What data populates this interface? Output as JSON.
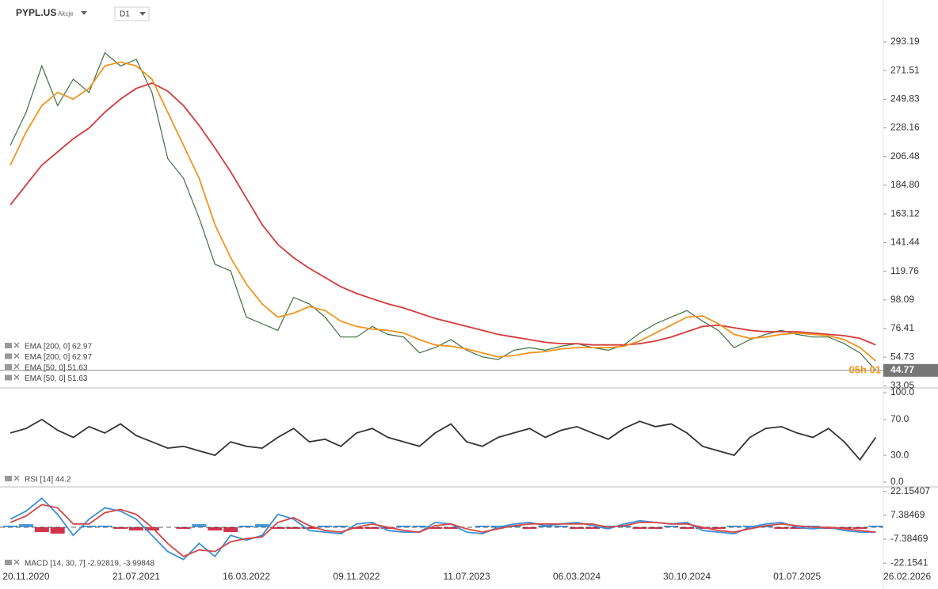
{
  "header": {
    "symbol": "PYPL.US",
    "asset_class": "Akcje",
    "timeframe": "D1"
  },
  "chart_data": [
    {
      "type": "line",
      "ylim": [
        31.5,
        318.9
      ],
      "yticks": [
        293.19,
        271.51,
        249.83,
        228.16,
        206.48,
        {
          "value": 184.8,
          "label": "184.80"
        },
        163.12,
        141.44,
        119.76,
        98.09,
        76.41,
        54.73,
        33.05
      ],
      "series": [
        {
          "color": "#3f6f3f",
          "values": [
            215,
            240,
            275,
            245,
            265,
            255,
            285,
            275,
            280,
            255,
            205,
            190,
            160,
            125,
            120,
            85,
            80,
            75,
            100,
            95,
            85,
            70,
            70,
            78,
            72,
            70,
            58,
            62,
            68,
            60,
            55,
            53,
            60,
            62,
            60,
            63,
            65,
            62,
            60,
            64,
            73,
            80,
            85,
            90,
            82,
            75,
            62,
            68,
            72,
            75,
            72,
            70,
            70,
            65,
            58,
            45,
            null,
            null
          ]
        },
        {
          "color": "#d63a3a",
          "values": [
            170,
            185,
            200,
            210,
            220,
            228,
            240,
            250,
            258,
            262,
            256,
            245,
            230,
            213,
            195,
            175,
            155,
            140,
            130,
            122,
            115,
            108,
            103,
            99,
            95,
            92,
            88,
            84,
            81,
            78,
            75,
            72,
            70,
            68,
            66,
            65,
            65,
            64,
            64,
            64,
            65,
            67,
            70,
            74,
            78,
            79,
            77,
            75,
            74,
            74,
            74,
            73,
            72,
            71,
            69,
            64,
            null,
            null
          ]
        },
        {
          "color": "#f0941e",
          "values": [
            200,
            225,
            245,
            255,
            250,
            258,
            275,
            278,
            275,
            265,
            240,
            215,
            190,
            155,
            130,
            110,
            95,
            85,
            88,
            93,
            90,
            82,
            78,
            76,
            75,
            73,
            68,
            64,
            63,
            61,
            58,
            55,
            56,
            58,
            59,
            61,
            62,
            62,
            62,
            63,
            67,
            73,
            79,
            85,
            86,
            80,
            72,
            69,
            70,
            72,
            73,
            72,
            71,
            68,
            62,
            52,
            null,
            null
          ]
        }
      ],
      "legend": [
        "EMA [200, 0] 62.97",
        "EMA [200, 0] 62.97",
        "EMA [50, 0] 51.63",
        "EMA [50, 0] 51.63"
      ],
      "last_price": 44.77,
      "countdown": "05h 01"
    },
    {
      "type": "line",
      "ylim": [
        0,
        100
      ],
      "yticks": [
        {
          "value": 100,
          "label": "100.0"
        },
        {
          "value": 70,
          "label": "70.0"
        },
        {
          "value": 30,
          "label": "30.0"
        },
        {
          "value": 0,
          "label": "0.0"
        }
      ],
      "series": [
        {
          "color": "#333333",
          "values": [
            55,
            60,
            70,
            58,
            50,
            62,
            55,
            65,
            52,
            45,
            38,
            40,
            35,
            30,
            45,
            40,
            38,
            50,
            60,
            45,
            48,
            40,
            55,
            60,
            50,
            45,
            40,
            55,
            65,
            45,
            40,
            50,
            55,
            60,
            50,
            58,
            62,
            55,
            48,
            60,
            68,
            62,
            65,
            55,
            40,
            35,
            30,
            50,
            60,
            62,
            55,
            50,
            60,
            45,
            25,
            50,
            null,
            null
          ]
        }
      ],
      "legend": [
        "RSI [14] 44.2"
      ]
    },
    {
      "type": "line",
      "ylim": [
        -24,
        24
      ],
      "yticks": [
        22.15407,
        7.38469,
        -7.38469,
        -22.1541
      ],
      "categories": [
        null,
        "20.11.2020",
        null,
        null,
        null,
        null,
        null,
        null,
        "21.07.2021",
        null,
        null,
        null,
        null,
        null,
        null,
        "16.03.2022",
        null,
        null,
        null,
        null,
        null,
        null,
        "09.11.2022",
        null,
        null,
        null,
        null,
        null,
        null,
        "11.07.2023",
        null,
        null,
        null,
        null,
        null,
        null,
        "06.03.2024",
        null,
        null,
        null,
        null,
        null,
        null,
        "30.10.2024",
        null,
        null,
        null,
        null,
        null,
        null,
        "01.07.2025",
        null,
        null,
        null,
        null,
        null,
        null,
        "26.02.2026"
      ],
      "histogram": {
        "positive_color": "#2a8ad4",
        "negative_color": "#c8102e",
        "values": [
          1,
          2,
          -3,
          -4,
          0,
          1,
          1,
          -1,
          -2,
          -2,
          0,
          -1,
          2,
          -2,
          -3,
          1,
          2,
          -1,
          -1,
          -1,
          1,
          1,
          -1,
          -1,
          -1,
          1,
          1,
          -1,
          -1,
          0,
          1,
          1,
          1,
          -1,
          1,
          1,
          -1,
          -1,
          1,
          1,
          -1,
          -1,
          1,
          -1,
          -1,
          -1,
          1,
          1,
          1,
          -1,
          -1,
          1,
          -1,
          -1,
          -1,
          1,
          null,
          null
        ]
      },
      "series": [
        {
          "color": "#3b8fd9",
          "values": [
            5,
            10,
            18,
            8,
            -5,
            5,
            12,
            10,
            5,
            -5,
            -15,
            -20,
            -10,
            -18,
            -5,
            -8,
            -5,
            8,
            5,
            -2,
            -3,
            -4,
            2,
            3,
            -2,
            -3,
            -3,
            3,
            2,
            -3,
            -4,
            0,
            2,
            3,
            1,
            2,
            3,
            1,
            -1,
            2,
            4,
            3,
            2,
            3,
            -2,
            -3,
            -4,
            0,
            2,
            3,
            0,
            -1,
            0,
            -2,
            -3,
            -3,
            null,
            null
          ]
        },
        {
          "color": "#d64545",
          "values": [
            3,
            7,
            14,
            12,
            2,
            2,
            9,
            11,
            8,
            0,
            -10,
            -18,
            -14,
            -15,
            -9,
            -7,
            -6,
            3,
            6,
            1,
            -2,
            -3,
            0,
            2,
            0,
            -2,
            -3,
            1,
            2,
            -1,
            -3,
            -1,
            1,
            2,
            2,
            2,
            2,
            2,
            0,
            1,
            3,
            3,
            2,
            2,
            0,
            -2,
            -3,
            -1,
            1,
            2,
            1,
            0,
            0,
            -1,
            -2,
            -3,
            null,
            null
          ]
        }
      ],
      "legend": [
        "MACD [14, 30, 7] -2.92819, -3.99848"
      ]
    }
  ]
}
